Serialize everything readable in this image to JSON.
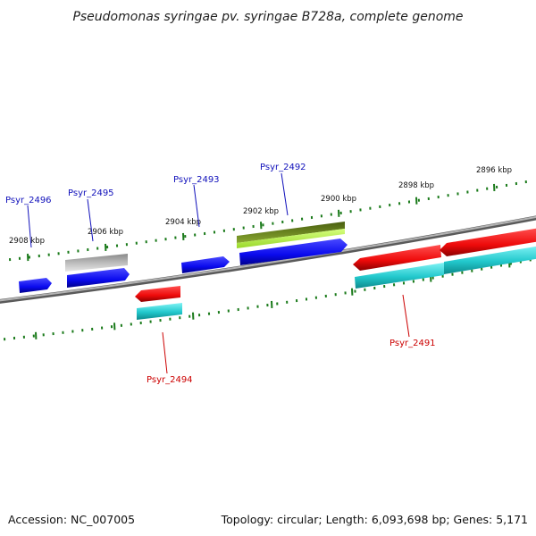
{
  "title": "Pseudomonas syringae pv. syringae B728a, complete genome",
  "footer": {
    "accession": "Accession: NC_007005",
    "summary": "Topology: circular; Length: 6,093,698 bp; Genes: 5,171"
  },
  "colors": {
    "backbone": "#888888",
    "ticks": "#1a7a1a",
    "label_blue": "#1111bb",
    "label_red": "#cc0000",
    "forward_cds": "#0a0aee",
    "reverse_cds": "#ee0a0a",
    "reverse_rna": "#22c8cc",
    "gene_gray": "#aaaaaa",
    "gene_olive": "#6d8a1e",
    "gene_lime": "#b6f24a"
  },
  "scale": {
    "unit": "kbp",
    "labels": [
      {
        "kbp": 2908,
        "text": "2908 kbp"
      },
      {
        "kbp": 2906,
        "text": "2906 kbp"
      },
      {
        "kbp": 2904,
        "text": "2904 kbp"
      },
      {
        "kbp": 2902,
        "text": "2902 kbp"
      },
      {
        "kbp": 2900,
        "text": "2900 kbp"
      },
      {
        "kbp": 2898,
        "text": "2898 kbp"
      },
      {
        "kbp": 2896,
        "text": "2896 kbp"
      }
    ]
  },
  "genes": [
    {
      "id": "Psyr_2496",
      "label": "Psyr_2496",
      "color": "label_blue"
    },
    {
      "id": "Psyr_2495",
      "label": "Psyr_2495",
      "color": "label_blue"
    },
    {
      "id": "Psyr_2494",
      "label": "Psyr_2494",
      "color": "label_red"
    },
    {
      "id": "Psyr_2493",
      "label": "Psyr_2493",
      "color": "label_blue"
    },
    {
      "id": "Psyr_2492",
      "label": "Psyr_2492",
      "color": "label_blue"
    },
    {
      "id": "Psyr_2491",
      "label": "Psyr_2491",
      "color": "label_red"
    }
  ]
}
